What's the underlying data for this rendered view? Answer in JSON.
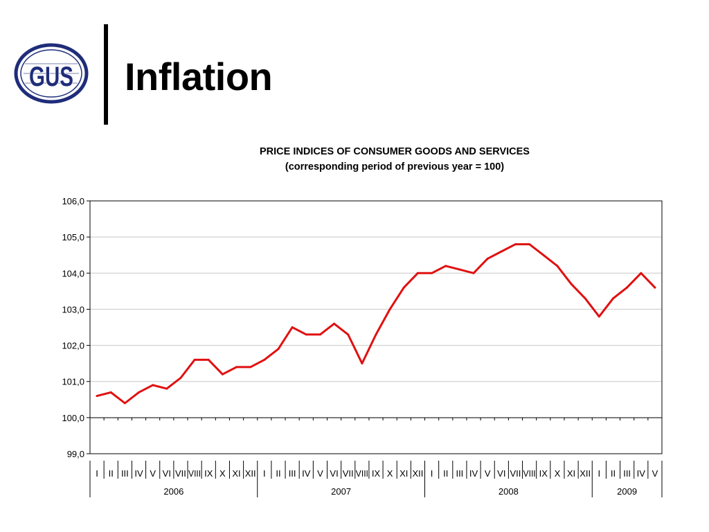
{
  "slide": {
    "title": "Inflation",
    "logo_text": "GUS"
  },
  "colors": {
    "brand": "#1f2d7a",
    "series": "#e01010",
    "grid": "#c8c8c8"
  },
  "chart_data": {
    "type": "line",
    "title": "PRICE INDICES OF CONSUMER GOODS AND SERVICES",
    "subtitle": "(corresponding period of previous year = 100)",
    "ylim": [
      99.0,
      106.0
    ],
    "yticks": [
      "99,0",
      "100,0",
      "101,0",
      "102,0",
      "103,0",
      "104,0",
      "105,0",
      "106,0"
    ],
    "grid": true,
    "legend": "none",
    "groups": [
      {
        "year": "2006",
        "months": [
          "I",
          "II",
          "III",
          "IV",
          "V",
          "VI",
          "VII",
          "VIII",
          "IX",
          "X",
          "XI",
          "XII"
        ]
      },
      {
        "year": "2007",
        "months": [
          "I",
          "II",
          "III",
          "IV",
          "V",
          "VI",
          "VII",
          "VIII",
          "IX",
          "X",
          "XI",
          "XII"
        ]
      },
      {
        "year": "2008",
        "months": [
          "I",
          "II",
          "III",
          "IV",
          "V",
          "VI",
          "VII",
          "VIII",
          "IX",
          "X",
          "XI",
          "XII"
        ]
      },
      {
        "year": "2009",
        "months": [
          "I",
          "II",
          "III",
          "IV",
          "V"
        ]
      }
    ],
    "series": [
      {
        "values": [
          100.6,
          100.7,
          100.4,
          100.7,
          100.9,
          100.8,
          101.1,
          101.6,
          101.6,
          101.2,
          101.4,
          101.4,
          101.6,
          101.9,
          102.5,
          102.3,
          102.3,
          102.6,
          102.3,
          101.5,
          102.3,
          103.0,
          103.6,
          104.0,
          104.0,
          104.2,
          104.1,
          104.0,
          104.4,
          104.6,
          104.8,
          104.8,
          104.5,
          104.2,
          103.7,
          103.3,
          102.8,
          103.3,
          103.6,
          104.0,
          103.6
        ]
      }
    ]
  }
}
